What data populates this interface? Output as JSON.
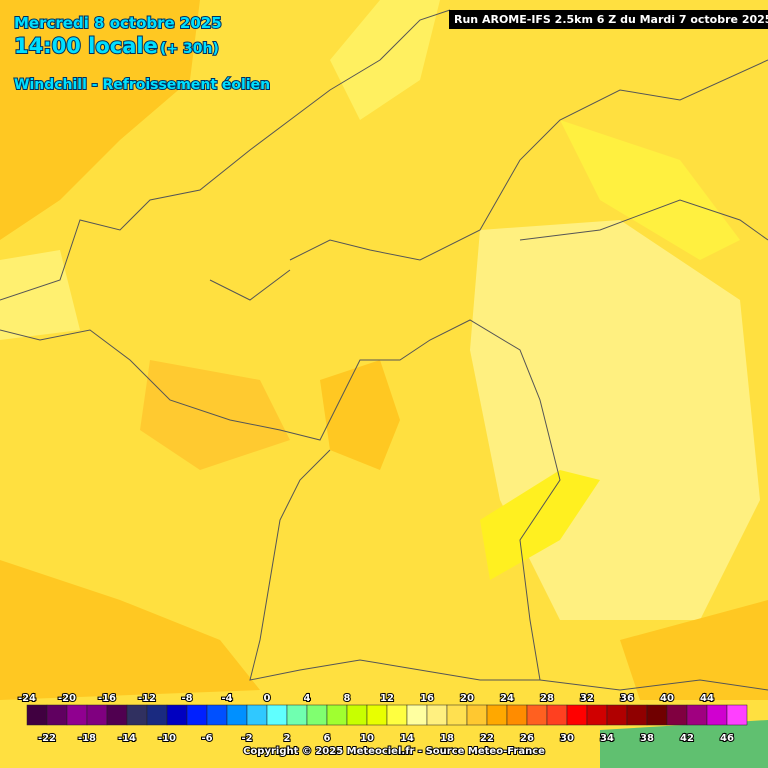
{
  "header": {
    "date": "Mercredi 8 octobre 2025",
    "time": "14:00 locale",
    "lead": "(+ 30h)",
    "parameter": "Windchill - Refroissement éolien",
    "run": "Run AROME-IFS 2.5km 6 Z du Mardi 7 octobre 2025"
  },
  "legend": {
    "labels": [
      -24,
      -22,
      -20,
      -18,
      -16,
      -14,
      -12,
      -10,
      -8,
      -6,
      -4,
      -2,
      0,
      2,
      4,
      6,
      8,
      10,
      12,
      14,
      16,
      18,
      20,
      22,
      24,
      26,
      28,
      30,
      32,
      34,
      36,
      38,
      40,
      42,
      44,
      46
    ],
    "colors": [
      "#400040",
      "#600060",
      "#900090",
      "#800080",
      "#500050",
      "#303060",
      "#1a2a80",
      "#0000c0",
      "#0020ff",
      "#0050ff",
      "#0090ff",
      "#30c8ff",
      "#60ffff",
      "#70ffb0",
      "#80ff70",
      "#a0ff30",
      "#c8ff00",
      "#e8ff00",
      "#ffff40",
      "#ffffa0",
      "#fff080",
      "#ffe050",
      "#ffc830",
      "#ffa800",
      "#ff8c00",
      "#ff6020",
      "#ff4020",
      "#ff0000",
      "#d00000",
      "#b00000",
      "#900000",
      "#700000",
      "#800040",
      "#a00080",
      "#d000d0",
      "#ff40ff"
    ]
  },
  "footer": {
    "copyright": "Copyright © 2025 Meteociel.fr - Source Meteo-France"
  }
}
